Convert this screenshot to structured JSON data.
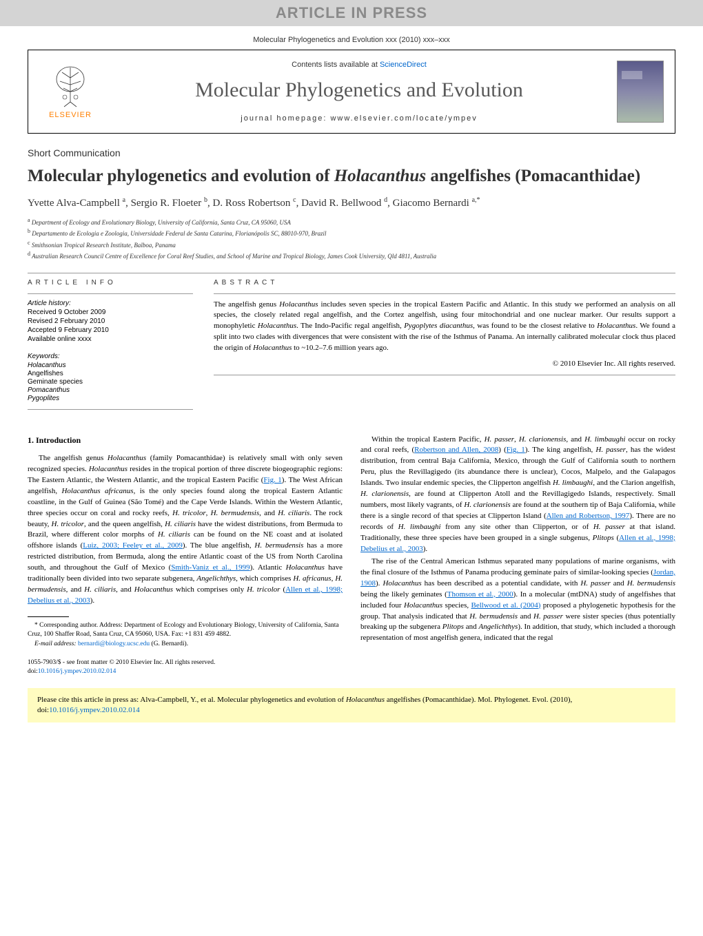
{
  "banner": {
    "text": "ARTICLE IN PRESS"
  },
  "journal_header": "Molecular Phylogenetics and Evolution xxx (2010) xxx–xxx",
  "box": {
    "elsevier": "ELSEVIER",
    "contents_prefix": "Contents lists available at ",
    "contents_link": "ScienceDirect",
    "journal_title": "Molecular Phylogenetics and Evolution",
    "homepage_label": "journal homepage: www.elsevier.com/locate/ympev"
  },
  "short_comm": "Short Communication",
  "title_pre": "Molecular phylogenetics and evolution of ",
  "title_em": "Holacanthus",
  "title_post": " angelfishes (Pomacanthidae)",
  "authors_html": "Yvette Alva-Campbell <sup>a</sup>, Sergio R. Floeter <sup>b</sup>, D. Ross Robertson <sup>c</sup>, David R. Bellwood <sup>d</sup>, Giacomo Bernardi <sup>a,*</sup>",
  "affiliations": [
    "a Department of Ecology and Evolutionary Biology, University of California, Santa Cruz, CA 95060, USA",
    "b Departamento de Ecologia e Zoologia, Universidade Federal de Santa Catarina, Florianópolis SC, 88010-970, Brazil",
    "c Smithsonian Tropical Research Institute, Balboa, Panama",
    "d Australian Research Council Centre of Excellence for Coral Reef Studies, and School of Marine and Tropical Biology, James Cook University, Qld 4811, Australia"
  ],
  "info": {
    "header": "ARTICLE INFO",
    "history_label": "Article history:",
    "history": [
      "Received 9 October 2009",
      "Revised 2 February 2010",
      "Accepted 9 February 2010",
      "Available online xxxx"
    ],
    "keywords_label": "Keywords:",
    "keywords": [
      "Holacanthus",
      "Angelfishes",
      "Geminate species",
      "Pomacanthus",
      "Pygoplites"
    ]
  },
  "abstract": {
    "header": "ABSTRACT",
    "text": "The angelfish genus Holacanthus includes seven species in the tropical Eastern Pacific and Atlantic. In this study we performed an analysis on all species, the closely related regal angelfish, and the Cortez angelfish, using four mitochondrial and one nuclear marker. Our results support a monophyletic Holacanthus. The Indo-Pacific regal angelfish, Pygoplytes diacanthus, was found to be the closest relative to Holacanthus. We found a split into two clades with divergences that were consistent with the rise of the Isthmus of Panama. An internally calibrated molecular clock thus placed the origin of Holacanthus to ~10.2–7.6 million years ago.",
    "copyright": "© 2010 Elsevier Inc. All rights reserved."
  },
  "section1": {
    "heading": "1. Introduction",
    "p1": "The angelfish genus Holacanthus (family Pomacanthidae) is relatively small with only seven recognized species. Holacanthus resides in the tropical portion of three discrete biogeographic regions: The Eastern Atlantic, the Western Atlantic, and the tropical Eastern Pacific (Fig. 1). The West African angelfish, Holacanthus africanus, is the only species found along the tropical Eastern Atlantic coastline, in the Gulf of Guinea (São Tomé) and the Cape Verde Islands. Within the Western Atlantic, three species occur on coral and rocky reefs, H. tricolor, H. bermudensis, and H. ciliaris. The rock beauty, H. tricolor, and the queen angelfish, H. ciliaris have the widest distributions, from Bermuda to Brazil, where different color morphs of H. ciliaris can be found on the NE coast and at isolated offshore islands (Luiz, 2003; Feeley et al., 2009). The blue angelfish, H. bermudensis has a more restricted distribution, from Bermuda, along the entire Atlantic coast of the US from North Carolina south, and throughout the Gulf of Mexico (Smith-Vaniz et al., 1999). Atlantic Holacanthus have traditionally been divided into two separate subgenera, Angelichthys, which comprises H. africanus, H. bermudensis, and H. ciliaris, and Holacanthus which comprises only H. tricolor (Allen et al., 1998; Debelius et al., 2003).",
    "p2": "Within the tropical Eastern Pacific, H. passer, H. clarionensis, and H. limbaughi occur on rocky and coral reefs, (Robertson and Allen, 2008) (Fig. 1). The king angelfish, H. passer, has the widest distribution, from central Baja California, Mexico, through the Gulf of California south to northern Peru, plus the Revillagigedo (its abundance there is unclear), Cocos, Malpelo, and the Galapagos Islands. Two insular endemic species, the Clipperton angelfish H. limbaughi, and the Clarion angelfish, H. clarionensis, are found at Clipperton Atoll and the Revillagigedo Islands, respectively. Small numbers, most likely vagrants, of H. clarionensis are found at the southern tip of Baja California, while there is a single record of that species at Clipperton Island (Allen and Robertson, 1997). There are no records of H. limbaughi from any site other than Clipperton, or of H. passer at that island. Traditionally, these three species have been grouped in a single subgenus, Plitops (Allen et al., 1998; Debelius et al., 2003).",
    "p3": "The rise of the Central American Isthmus separated many populations of marine organisms, with the final closure of the Isthmus of Panama producing geminate pairs of similar-looking species (Jordan, 1908). Holacanthus has been described as a potential candidate, with H. passer and H. bermudensis being the likely geminates (Thomson et al., 2000). In a molecular (mtDNA) study of angelfishes that included four Holacanthus species, Bellwood et al. (2004) proposed a phylogenetic hypothesis for the group. That analysis indicated that H. bermudensis and H. passer were sister species (thus potentially breaking up the subgenera Plitops and Angelichthys). In addition, that study, which included a thorough representation of most angelfish genera, indicated that the regal"
  },
  "footnotes": {
    "corr": "* Corresponding author. Address: Department of Ecology and Evolutionary Biology, University of California, Santa Cruz, 100 Shaffer Road, Santa Cruz, CA 95060, USA. Fax: +1 831 459 4882.",
    "email_label": "E-mail address: ",
    "email": "bernardi@biology.ucsc.edu",
    "email_suffix": " (G. Bernardi)."
  },
  "bottom": {
    "issn": "1055-7903/$ - see front matter © 2010 Elsevier Inc. All rights reserved.",
    "doi_label": "doi:",
    "doi": "10.1016/j.ympev.2010.02.014"
  },
  "citation": {
    "text_pre": "Please cite this article in press as: Alva-Campbell, Y., et al. Molecular phylogenetics and evolution of ",
    "text_em": "Holacanthus",
    "text_post": " angelfishes (Pomacanthidae). Mol. Phylogenet. Evol. (2010), doi:",
    "doi": "10.1016/j.ympev.2010.02.014"
  },
  "colors": {
    "banner_bg": "#d4d4d4",
    "banner_fg": "#8a8a8a",
    "link": "#0066cc",
    "elsevier_orange": "#ff7f00",
    "citation_bg": "#fffcc0"
  }
}
